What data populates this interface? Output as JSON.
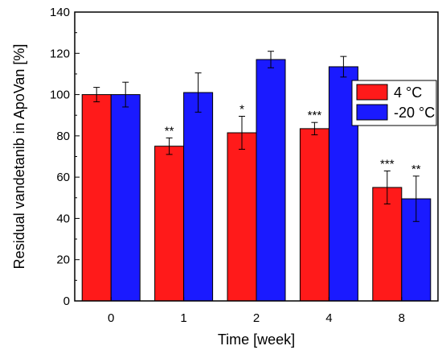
{
  "chart_data": {
    "type": "bar",
    "xlabel": "Time [week]",
    "ylabel": "Residual vandetanib in ApoVan [%]",
    "categories": [
      "0",
      "1",
      "2",
      "4",
      "8"
    ],
    "ylim": [
      0,
      140
    ],
    "yticks": [
      "0",
      "20",
      "40",
      "60",
      "80",
      "100",
      "120",
      "140"
    ],
    "series": [
      {
        "name": "4 °C",
        "color": "#ff1a1a",
        "values": [
          100,
          75,
          81.5,
          83.5,
          55
        ],
        "errors": [
          3.5,
          4,
          8,
          3,
          8
        ],
        "significance": [
          "",
          "**",
          "*",
          "***",
          "***"
        ]
      },
      {
        "name": "-20 °C",
        "color": "#1a1aff",
        "values": [
          100,
          101,
          117,
          113.5,
          49.5
        ],
        "errors": [
          6,
          9.5,
          4,
          5,
          11
        ],
        "significance": [
          "",
          "",
          "",
          "",
          "**"
        ]
      }
    ],
    "legend_position": "top-right",
    "grid": false
  }
}
